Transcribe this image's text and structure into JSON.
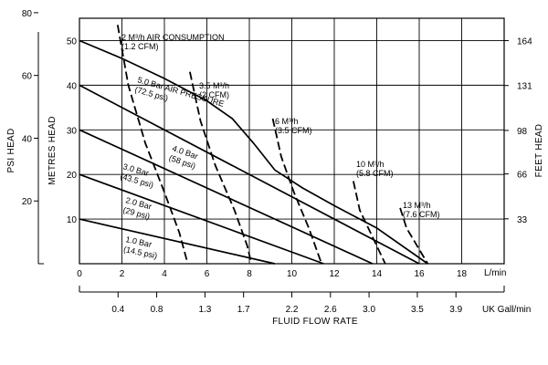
{
  "chart_data": {
    "type": "line",
    "x": {
      "title": "FLUID FLOW RATE",
      "unit_label": "L/min",
      "range": [
        0,
        20
      ],
      "ticks": [
        0,
        2,
        4,
        6,
        8,
        10,
        12,
        14,
        16,
        18
      ],
      "tick_labels": [
        "0",
        "2",
        "4",
        "6",
        "8",
        "10",
        "12",
        "14",
        "16",
        "18"
      ]
    },
    "x_secondary": {
      "unit_label": "UK Gall/min",
      "ticks": [
        0.4,
        0.8,
        1.3,
        1.7,
        2.2,
        2.6,
        3.0,
        3.5,
        3.9
      ],
      "tick_labels": [
        "0.4",
        "0.8",
        "1.3",
        "1.7",
        "2.2",
        "2.6",
        "3.0",
        "3.5",
        "3.9"
      ]
    },
    "y": {
      "title": "METRES HEAD",
      "range": [
        0,
        55
      ],
      "ticks": [
        10,
        20,
        30,
        40,
        50
      ],
      "tick_labels": [
        "10",
        "20",
        "30",
        "40",
        "50"
      ]
    },
    "y_left_outer": {
      "title": "PSI HEAD",
      "ticks": [
        20,
        40,
        60,
        80
      ],
      "tick_labels": [
        "20",
        "40",
        "60",
        "80"
      ]
    },
    "y_right": {
      "title": "FEET HEAD",
      "ticks": [
        33,
        66,
        98,
        131,
        164
      ],
      "tick_labels": [
        "33",
        "66",
        "98",
        "131",
        "164"
      ]
    },
    "grid": true,
    "series": [
      {
        "name": "1.0 Bar (14.5 psi)",
        "kind": "pressure",
        "label_lines": [
          "1.0 Bar",
          "(14.5 psi)"
        ],
        "points": [
          [
            0,
            10
          ],
          [
            9.2,
            0
          ]
        ]
      },
      {
        "name": "2.0 Bar (29 psi)",
        "kind": "pressure",
        "label_lines": [
          "2.0 Bar",
          "(29 psi)"
        ],
        "points": [
          [
            0,
            20
          ],
          [
            11.5,
            0
          ]
        ]
      },
      {
        "name": "3.0 Bar (43.5 psi)",
        "kind": "pressure",
        "label_lines": [
          "3.0 Bar",
          "(43.5 psi)"
        ],
        "points": [
          [
            0,
            30
          ],
          [
            13.8,
            0
          ]
        ]
      },
      {
        "name": "4.0 Bar (58 psi)",
        "kind": "pressure",
        "label_lines": [
          "4.0 Bar",
          "(58 psi)"
        ],
        "points": [
          [
            0,
            40
          ],
          [
            16,
            0
          ]
        ]
      },
      {
        "name": "5.0 Bar AIR PRESSURE (72.5 psi)",
        "kind": "pressure",
        "label_lines": [
          "5.0 Bar AIR PRESSURE",
          "(72.5 psi)"
        ],
        "points": [
          [
            0,
            50
          ],
          [
            2,
            46
          ],
          [
            4,
            41.5
          ],
          [
            6,
            36.5
          ],
          [
            7.2,
            32.5
          ],
          [
            8.2,
            27
          ],
          [
            9.2,
            21
          ],
          [
            10.5,
            17
          ],
          [
            12,
            13
          ],
          [
            14,
            8
          ],
          [
            16.4,
            0
          ]
        ]
      },
      {
        "name": "2 M3/h (1.2 CFM)",
        "kind": "air",
        "label_lines": [
          "2 M³/h AIR CONSUMPTION",
          "(1.2 CFM)"
        ],
        "points": [
          [
            1.8,
            53.5
          ],
          [
            2.3,
            40
          ],
          [
            3.1,
            27
          ],
          [
            4.0,
            16
          ],
          [
            4.7,
            7
          ],
          [
            5.1,
            0
          ]
        ]
      },
      {
        "name": "3.5 M3/h (2 CFM)",
        "kind": "air",
        "label_lines": [
          "3.5 M³/h",
          "(2 CFM)"
        ],
        "points": [
          [
            5.2,
            43
          ],
          [
            5.7,
            32
          ],
          [
            6.4,
            22
          ],
          [
            7.3,
            12
          ],
          [
            7.9,
            4
          ],
          [
            8.1,
            0
          ]
        ]
      },
      {
        "name": "6 M3/h (3.5 CFM)",
        "kind": "air",
        "label_lines": [
          "6 M³/h",
          "(3.5 CFM)"
        ],
        "points": [
          [
            9.1,
            32.5
          ],
          [
            9.5,
            24
          ],
          [
            10.1,
            16
          ],
          [
            10.8,
            8
          ],
          [
            11.4,
            0
          ]
        ]
      },
      {
        "name": "10 M3/h (5.8 CFM)",
        "kind": "air",
        "label_lines": [
          "10 M³/h",
          "(5.8 CFM)"
        ],
        "points": [
          [
            12.9,
            18.5
          ],
          [
            13.2,
            12
          ],
          [
            13.8,
            6
          ],
          [
            14.4,
            0
          ]
        ]
      },
      {
        "name": "13 M3/h (7.6 CFM)",
        "kind": "air",
        "label_lines": [
          "13 M³/h",
          "(7.6 CFM)"
        ],
        "points": [
          [
            15.1,
            12.5
          ],
          [
            15.4,
            8
          ],
          [
            15.9,
            4
          ],
          [
            16.4,
            0
          ]
        ]
      }
    ]
  }
}
